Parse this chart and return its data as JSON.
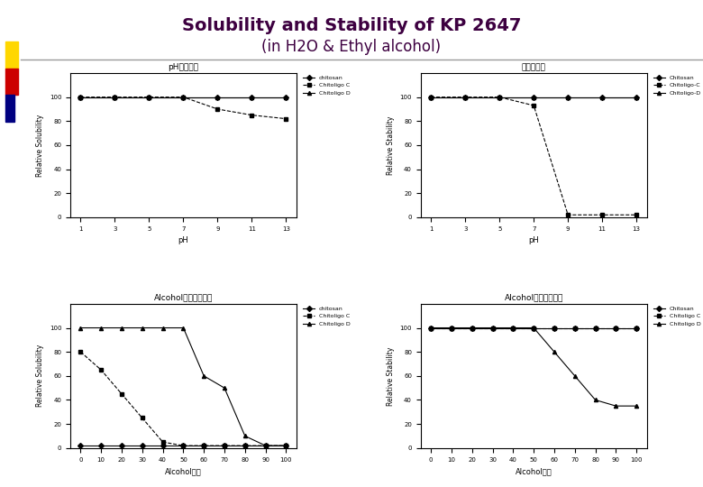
{
  "title_line1": "Solubility and Stability of KP 2647",
  "title_line2": "(in H2O & Ethyl alcohol)",
  "title_color": "#3d0040",
  "title_fontsize": 14,
  "subtitle_fontsize": 12,
  "ph_values": [
    1,
    3,
    5,
    7,
    9,
    11,
    13
  ],
  "ph_solubility_chitosan": [
    100,
    100,
    100,
    100,
    100,
    100,
    100
  ],
  "ph_solubility_oligo_c": [
    100,
    100,
    100,
    100,
    90,
    85,
    82
  ],
  "ph_solubility_oligo_d": [
    100,
    100,
    100,
    100,
    100,
    100,
    100
  ],
  "ph_stability_chitosan": [
    100,
    100,
    100,
    100,
    100,
    100,
    100
  ],
  "ph_stability_oligo_c": [
    100,
    100,
    100,
    93,
    2,
    2,
    2
  ],
  "ph_stability_oligo_d": [
    100,
    100,
    100,
    100,
    100,
    100,
    100
  ],
  "alcohol_values": [
    0,
    10,
    20,
    30,
    40,
    50,
    60,
    70,
    80,
    90,
    100
  ],
  "alc_solubility_chitosan": [
    2,
    2,
    2,
    2,
    2,
    2,
    2,
    2,
    2,
    2,
    2
  ],
  "alc_solubility_oligo_c": [
    80,
    65,
    45,
    25,
    5,
    2,
    2,
    2,
    2,
    2,
    2
  ],
  "alc_solubility_oligo_d": [
    100,
    100,
    100,
    100,
    100,
    100,
    60,
    50,
    10,
    2,
    2
  ],
  "alc_stability_chitosan": [
    100,
    100,
    100,
    100,
    100,
    100,
    100,
    100,
    100,
    100,
    100
  ],
  "alc_stability_oligo_c": [
    100,
    100,
    100,
    100,
    100,
    100,
    100,
    100,
    100,
    100,
    100
  ],
  "alc_stability_oligo_d": [
    100,
    100,
    100,
    100,
    100,
    100,
    80,
    60,
    40,
    35,
    35
  ],
  "subplot_titles": [
    "pH別溢解度",
    "水別稳定性",
    "Alcohol濃度別溢解度",
    "Alcohol濃度別安定性"
  ],
  "xlabel_ph": "pH",
  "xlabel_alc": "Alcohol濃度",
  "ylabel_sol": "Relative Solubility",
  "ylabel_stab": "Relative Stability",
  "legend_labels_sol": [
    "chitosan",
    "Chitoligo C",
    "Chitoligo D"
  ],
  "legend_labels_stab": [
    "Chitosan",
    "Chitoligo-C",
    "Chitoligo-D"
  ],
  "legend_labels_stab2": [
    "Chitosan",
    "Chitoligo C",
    "Chitoligo D"
  ],
  "bg_color": "#ffffff",
  "deco_yellow": "#FFD700",
  "deco_red": "#CC0000",
  "deco_blue": "#000080",
  "grid_color": "#cccccc",
  "plot_bg": "#f0f0f0"
}
